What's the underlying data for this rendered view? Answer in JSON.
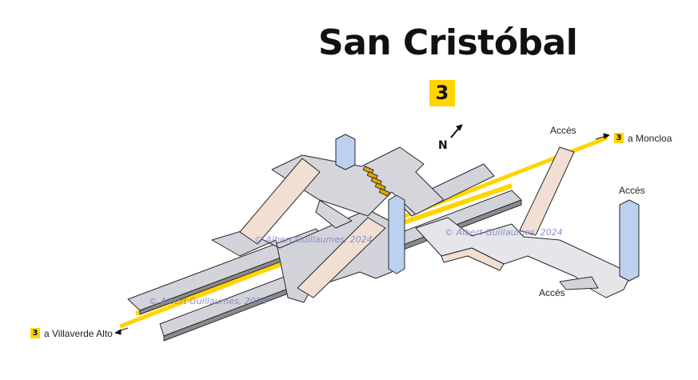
{
  "title": "San Cristóbal",
  "line_badge": "3",
  "north_label": "N",
  "exits": {
    "label_top": "Accés",
    "label_right": "Accés",
    "label_bottom": "Accés"
  },
  "destinations": {
    "east": {
      "line": "3",
      "text": "a Moncloa"
    },
    "west": {
      "line": "3",
      "text": "a Villaverde Alto"
    }
  },
  "watermarks": [
    "© Albert Guillaumes, 2024",
    "© Albert Guillaumes, 2024",
    "© Albert Guillaumes, 2024"
  ],
  "colors": {
    "line3": "#ffd400",
    "platform": "#d4d4dc",
    "mezzanine": "#e6e6ea",
    "ramp": "#f0dfd2",
    "elevator": "#bcd0ef"
  }
}
